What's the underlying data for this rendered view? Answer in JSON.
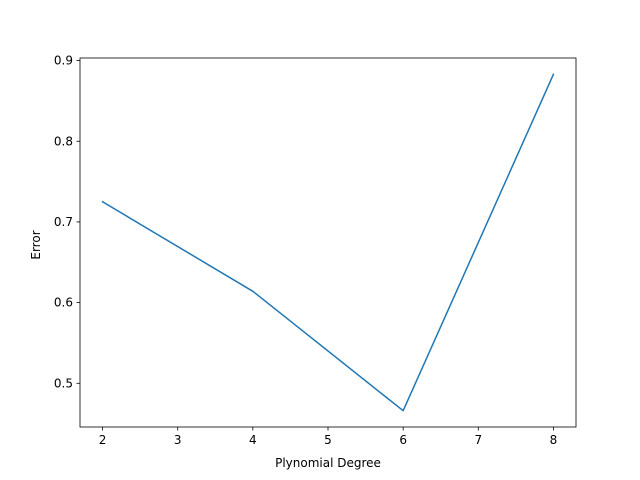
{
  "chart_data": {
    "type": "line",
    "title": "",
    "xlabel": "Plynomial Degree",
    "ylabel": "Error",
    "x": [
      2,
      4,
      6,
      8
    ],
    "series": [
      {
        "values": [
          0.725,
          0.614,
          0.466,
          0.883
        ],
        "color": "#1f77b4"
      }
    ],
    "xlim": [
      1.7,
      8.3
    ],
    "ylim": [
      0.4458,
      0.9032
    ],
    "xticks": [
      2,
      3,
      4,
      5,
      6,
      7,
      8
    ],
    "xtick_labels": [
      "2",
      "3",
      "4",
      "5",
      "6",
      "7",
      "8"
    ],
    "yticks": [
      0.5,
      0.6,
      0.7,
      0.8,
      0.9
    ],
    "ytick_labels": [
      "0.5",
      "0.6",
      "0.7",
      "0.8",
      "0.9"
    ],
    "grid": false,
    "legend": "none"
  }
}
